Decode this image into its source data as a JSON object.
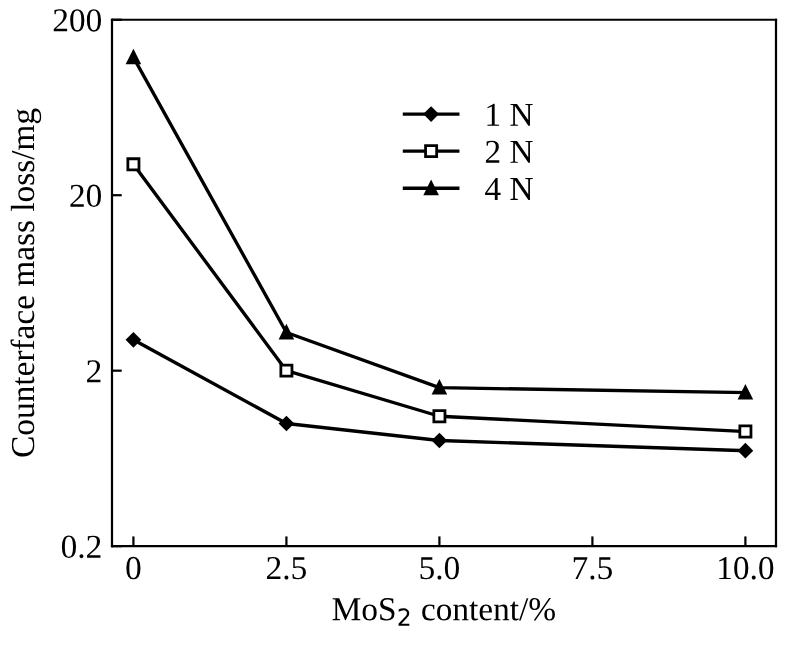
{
  "chart_data": {
    "type": "line",
    "xlabel": "MoS$_{2}$ content/%",
    "ylabel": "Counterface mass loss/mg",
    "series": [
      {
        "name": "1 N",
        "color": "#000000",
        "marker": "diamond",
        "x": [
          0,
          2.5,
          5,
          10
        ],
        "values": [
          3.0,
          1.0,
          0.8,
          0.7
        ]
      },
      {
        "name": "2 N",
        "color": "#000000",
        "marker": "square",
        "x": [
          0,
          2.5,
          5,
          10
        ],
        "values": [
          30,
          2.0,
          1.1,
          0.9
        ]
      },
      {
        "name": "4 N",
        "color": "#000000",
        "marker": "triangle",
        "x": [
          0,
          2.5,
          5,
          10
        ],
        "values": [
          122,
          3.3,
          1.6,
          1.5
        ]
      }
    ],
    "log": "y",
    "xlim": [
      -0.35,
      10.5
    ],
    "ylim": [
      0.2,
      200
    ],
    "xticks": [
      0,
      {
        "value": 2.5,
        "label": "2.5"
      },
      {
        "value": 5,
        "label": "5.0"
      },
      {
        "value": 7.5,
        "label": "7.5"
      },
      {
        "value": 10,
        "label": "10.0"
      }
    ],
    "yticks": [
      0.2,
      2,
      20,
      200
    ],
    "legend": "top right",
    "grid": false,
    "line_style": "solid"
  }
}
